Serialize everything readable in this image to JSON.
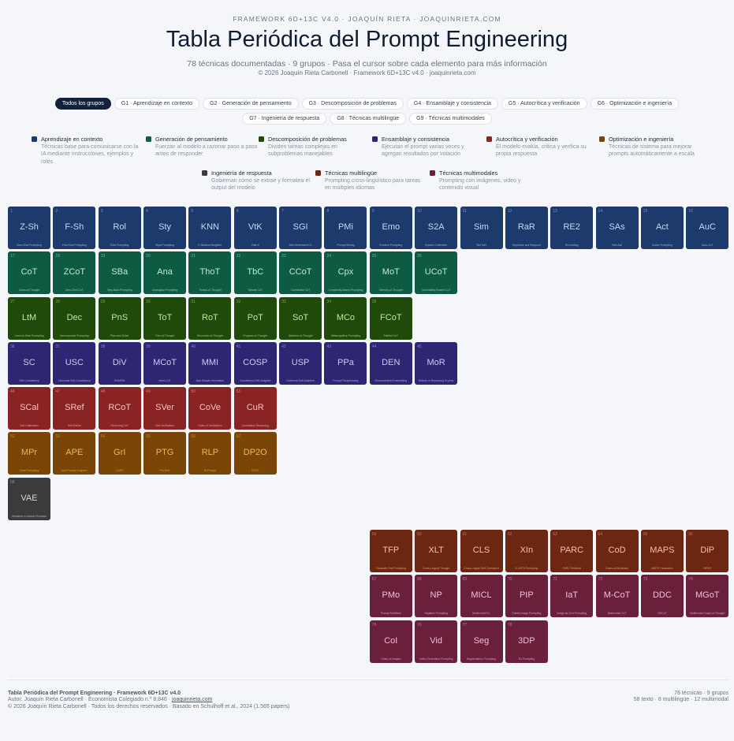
{
  "header": {
    "kicker": "FRAMEWORK 6D+13C V4.0 · JOAQUÍN RIETA · JOAQUINRIETA.COM",
    "title": "Tabla Periódica del Prompt Engineering",
    "subtitle": "78 técnicas documentadas · 9 grupos · Pasa el cursor sobre cada elemento para más información",
    "copyright": "© 2026 Joaquín Rieta Carbonell · Framework 6D+13C v4.0 · joaquinrieta.com"
  },
  "filters": [
    "Todos los grupos",
    "G1 · Aprendizaje en contexto",
    "G2 · Generación de pensamiento",
    "G3 · Descomposición de problemas",
    "G4 · Ensamblaje y consistencia",
    "G5 · Autocrítica y verificación",
    "G6 · Optimización e ingeniería",
    "G7 · Ingeniería de respuesta",
    "G8 · Técnicas multilingüe",
    "G9 · Técnicas multimodales"
  ],
  "groups": [
    {
      "name": "Aprendizaje en contexto",
      "desc": "Técnicas base para comunicarse con la IA mediante instrucciones, ejemplos y roles",
      "color": "#1c3b6c",
      "text": "#c9d8f2"
    },
    {
      "name": "Generación de pensamiento",
      "desc": "Fuerzan al modelo a razonar paso a paso antes de responder",
      "color": "#0e5b44",
      "text": "#bfe8d6"
    },
    {
      "name": "Descomposición de problemas",
      "desc": "Dividen tareas complejas en subproblemas manejables",
      "color": "#1f4a0b",
      "text": "#c4e69b"
    },
    {
      "name": "Ensamblaje y consistencia",
      "desc": "Ejecutan el prompt varias veces y agregan resultados por votación",
      "color": "#2f2673",
      "text": "#cfc9f5"
    },
    {
      "name": "Autocrítica y verificación",
      "desc": "El modelo evalúa, critica y verifica su propia respuesta",
      "color": "#8a2424",
      "text": "#f4c4c0"
    },
    {
      "name": "Optimización e ingeniería",
      "desc": "Técnicas de sistema para mejorar prompts automáticamente a escala",
      "color": "#7a4608",
      "text": "#f2b54e"
    },
    {
      "name": "Ingeniería de respuesta",
      "desc": "Gobiernan cómo se extrae y formatea el output del modelo",
      "color": "#3b3b3b",
      "text": "#d6d6d6"
    },
    {
      "name": "Técnicas multilingüe",
      "desc": "Prompting cross-lingüístico para tareas en múltiples idiomas",
      "color": "#6c2611",
      "text": "#f2c3a8"
    },
    {
      "name": "Técnicas multimodales",
      "desc": "Prompting con imágenes, video y contenido visual",
      "color": "#6a1f3b",
      "text": "#f0c0d4"
    }
  ],
  "elements": [
    [
      "1",
      "Z-Sh",
      "Zero-Shot Prompting",
      0
    ],
    [
      "2",
      "F-Sh",
      "Few-Shot Prompting",
      0
    ],
    [
      "3",
      "Rol",
      "Role Prompting",
      0
    ],
    [
      "4",
      "Sty",
      "Style Prompting",
      0
    ],
    [
      "5",
      "KNN",
      "K-Nearest Neighbor",
      0
    ],
    [
      "6",
      "VtK",
      "Vote-K",
      0
    ],
    [
      "7",
      "SGI",
      "Self-Generated ICL",
      0
    ],
    [
      "8",
      "PMi",
      "Prompt Mining",
      0
    ],
    [
      "9",
      "Emo",
      "Emotion Prompting",
      0
    ],
    [
      "10",
      "S2A",
      "System 2 Attention",
      0
    ],
    [
      "11",
      "Sim",
      "SimToM",
      0
    ],
    [
      "12",
      "RaR",
      "Rephrase and Respond",
      0
    ],
    [
      "13",
      "RE2",
      "Re-reading",
      0
    ],
    [
      "14",
      "SAs",
      "Self-Ask",
      0
    ],
    [
      "15",
      "Act",
      "Active Prompting",
      0
    ],
    [
      "16",
      "AuC",
      "Auto-CoT",
      0
    ],
    [
      "17",
      "CoT",
      "Chain-of-Thought",
      1
    ],
    [
      "18",
      "ZCoT",
      "Zero-Shot CoT",
      1
    ],
    [
      "19",
      "SBa",
      "Step-Back Prompting",
      1
    ],
    [
      "20",
      "Ana",
      "Analogical Prompting",
      1
    ],
    [
      "21",
      "ThoT",
      "Thread-of-Thought",
      1
    ],
    [
      "22",
      "TbC",
      "Tabular CoT",
      1
    ],
    [
      "23",
      "CCoT",
      "Contrastive CoT",
      1
    ],
    [
      "24",
      "Cpx",
      "Complexity-Based Prompting",
      1
    ],
    [
      "25",
      "MoT",
      "Memory-of-Thought",
      1
    ],
    [
      "26",
      "UCoT",
      "Uncertainty-Routed CoT",
      1
    ],
    [
      "27",
      "LtM",
      "Least-to-Most Prompting",
      2
    ],
    [
      "28",
      "Dec",
      "Decomposed Prompting",
      2
    ],
    [
      "29",
      "PnS",
      "Plan-and-Solve",
      2
    ],
    [
      "30",
      "ToT",
      "Tree-of-Thought",
      2
    ],
    [
      "31",
      "RoT",
      "Recursion-of-Thought",
      2
    ],
    [
      "32",
      "PoT",
      "Program-of-Thought",
      2
    ],
    [
      "33",
      "SoT",
      "Skeleton-of-Thought",
      2
    ],
    [
      "34",
      "MCo",
      "Metacognitive Prompting",
      2
    ],
    [
      "35",
      "FCoT",
      "Faithful CoT",
      2
    ],
    [
      "36",
      "SC",
      "Self-Consistency",
      3
    ],
    [
      "37",
      "USC",
      "Universal Self-Consistency",
      3
    ],
    [
      "38",
      "DiV",
      "DiVeRSe",
      3
    ],
    [
      "39",
      "MCoT",
      "Meta-CoT",
      3
    ],
    [
      "40",
      "MMI",
      "Max Mutual Information",
      3
    ],
    [
      "41",
      "COSP",
      "Consistency Self-Adaptive",
      3
    ],
    [
      "42",
      "USP",
      "Universal Self-Adaptive",
      3
    ],
    [
      "43",
      "PPa",
      "Prompt Paraphrasing",
      3
    ],
    [
      "44",
      "DEN",
      "Demonstration Ensembling",
      3
    ],
    [
      "45",
      "MoR",
      "Mixture of Reasoning Experts",
      3
    ],
    [
      "46",
      "SCal",
      "Self-Calibration",
      4
    ],
    [
      "47",
      "SRef",
      "Self-Refine",
      4
    ],
    [
      "48",
      "RCoT",
      "Reversing CoT",
      4
    ],
    [
      "49",
      "SVer",
      "Self-Verification",
      4
    ],
    [
      "50",
      "CoVe",
      "Chain-of-Verification",
      4
    ],
    [
      "51",
      "CuR",
      "Cumulative Reasoning",
      4
    ],
    [
      "52",
      "MPr",
      "Meta Prompting",
      5
    ],
    [
      "53",
      "APE",
      "Auto Prompt Engineer",
      5
    ],
    [
      "54",
      "GrI",
      "GrIPS",
      5
    ],
    [
      "55",
      "PTG",
      "ProTeGi",
      5
    ],
    [
      "56",
      "RLP",
      "RLPrompt",
      5
    ],
    [
      "57",
      "DP2O",
      "DP2O",
      5
    ],
    [
      "58",
      "VAE",
      "Verbalizer & Answer Extractor",
      6
    ],
    [
      "59",
      "TFP",
      "Translate-First Prompting",
      7
    ],
    [
      "60",
      "XLT",
      "Cross-Lingual Thought",
      7
    ],
    [
      "61",
      "CLS",
      "Cross-Lingual Self Consistent",
      7
    ],
    [
      "62",
      "XIn",
      "X-InSTA Prompting",
      7
    ],
    [
      "63",
      "PARC",
      "PARC Retrieval",
      7
    ],
    [
      "64",
      "CoD",
      "Chain-of-Dictionary",
      7
    ],
    [
      "65",
      "MAPS",
      "MAPS Translation",
      7
    ],
    [
      "66",
      "DiP",
      "DiPMT",
      7
    ],
    [
      "67",
      "PMo",
      "Prompt Modifiers",
      8
    ],
    [
      "68",
      "NP",
      "Negative Prompting",
      8
    ],
    [
      "69",
      "MICL",
      "Multimodal ICL",
      8
    ],
    [
      "70",
      "PIP",
      "Paired-Image Prompting",
      8
    ],
    [
      "71",
      "IaT",
      "Image-as-Text Prompting",
      8
    ],
    [
      "72",
      "M-CoT",
      "Multimodal CoT",
      8
    ],
    [
      "73",
      "DDC",
      "DDCoT",
      8
    ],
    [
      "74",
      "MGoT",
      "Multimodal Graph-of-Thought",
      8
    ],
    [
      "75",
      "CoI",
      "Chain-of-Images",
      8
    ],
    [
      "76",
      "Vid",
      "Video Generation Prompting",
      8
    ],
    [
      "77",
      "Seg",
      "Segmentation Prompting",
      8
    ],
    [
      "78",
      "3DP",
      "3D Prompting",
      8
    ]
  ],
  "footer": {
    "line1": "Tabla Periódica del Prompt Engineering · Framework 6D+13C v4.0",
    "line2": "Autor: Joaquín Rieta Carbonell · Economista Colegiado n.º 8.846 · ",
    "link": "joaquinrieta.com",
    "line3": "© 2026 Joaquín Rieta Carbonell · Todos los derechos reservados · Basado en Schulhoff et al., 2024 (1.565 papers)",
    "right1": "78 técnicas · 9 grupos",
    "right2": "58 texto · 8 multilingüe · 12 multimodal"
  }
}
